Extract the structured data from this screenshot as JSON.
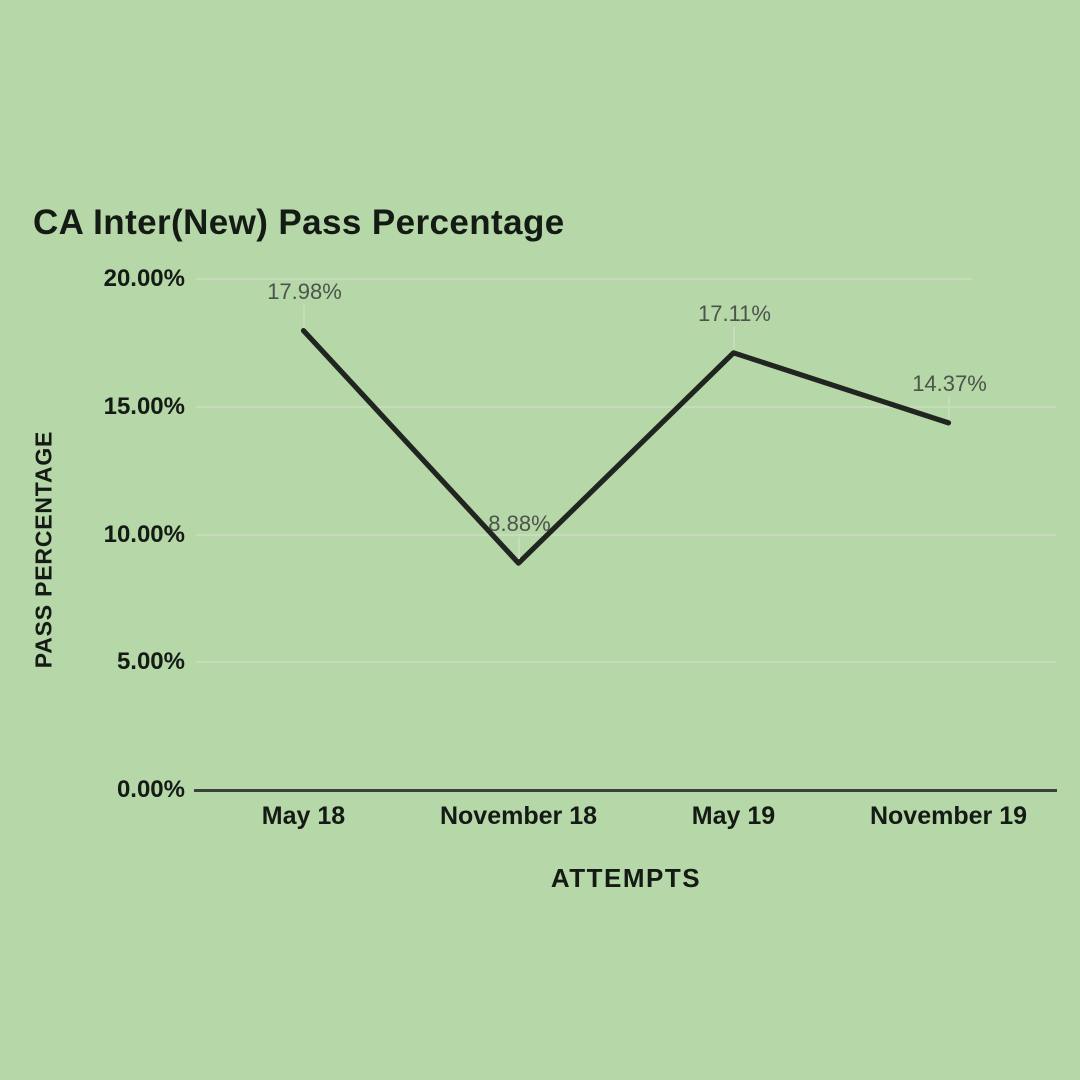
{
  "title": "CA Inter(New) Pass Percentage",
  "colors": {
    "background": "#b6d7a8",
    "series_line": "#20261f",
    "gridline": "#c7dcba",
    "axis_line": "#39423a",
    "data_label": "#4b554b",
    "axis_text": "#141a14"
  },
  "chart_data": {
    "type": "line",
    "title": "CA Inter(New) Pass Percentage",
    "xlabel": "ATTEMPTS",
    "ylabel": "PASS PERCENTAGE",
    "categories": [
      "May 18",
      "November 18",
      "May 19",
      "November 19"
    ],
    "series": [
      {
        "name": "Pass Percentage",
        "values": [
          17.98,
          8.88,
          17.11,
          14.37
        ]
      }
    ],
    "data_labels": [
      "17.98%",
      "8.88%",
      "17.11%",
      "14.37%"
    ],
    "ylim": [
      0,
      20
    ],
    "yticks": [
      {
        "label": "20.00%",
        "value": 20
      },
      {
        "label": "15.00%",
        "value": 15
      },
      {
        "label": "10.00%",
        "value": 10
      },
      {
        "label": "5.00%",
        "value": 5
      },
      {
        "label": "0.00%",
        "value": 0
      }
    ],
    "grid": true,
    "legend": "none"
  }
}
